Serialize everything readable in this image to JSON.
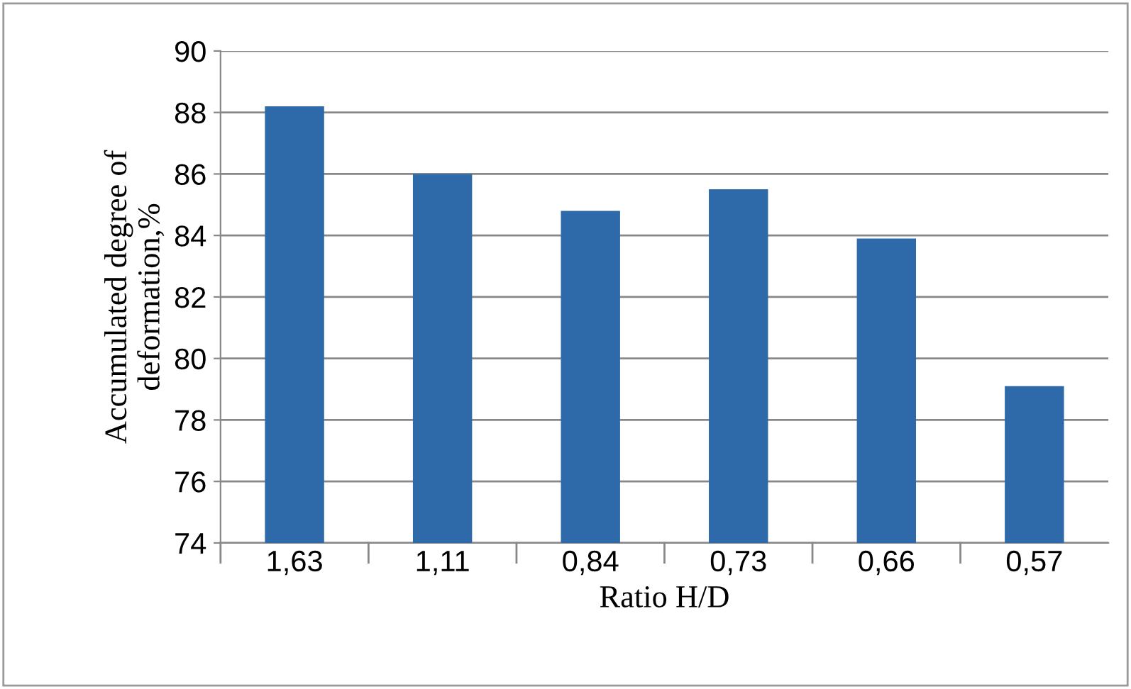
{
  "chart_data": {
    "type": "bar",
    "xlabel": "Ratio H/D",
    "ylabel": "Accumulated degree of\ndeformation,%",
    "categories": [
      "1,63",
      "1,11",
      "0,84",
      "0,73",
      "0,66",
      "0,57"
    ],
    "values": [
      88.2,
      86.0,
      84.8,
      85.5,
      83.9,
      79.1
    ],
    "color": "#2e6aa9",
    "ylim": [
      74,
      90
    ],
    "yticks": [
      74,
      76,
      78,
      80,
      82,
      84,
      86,
      88,
      90
    ],
    "grid": "y"
  }
}
